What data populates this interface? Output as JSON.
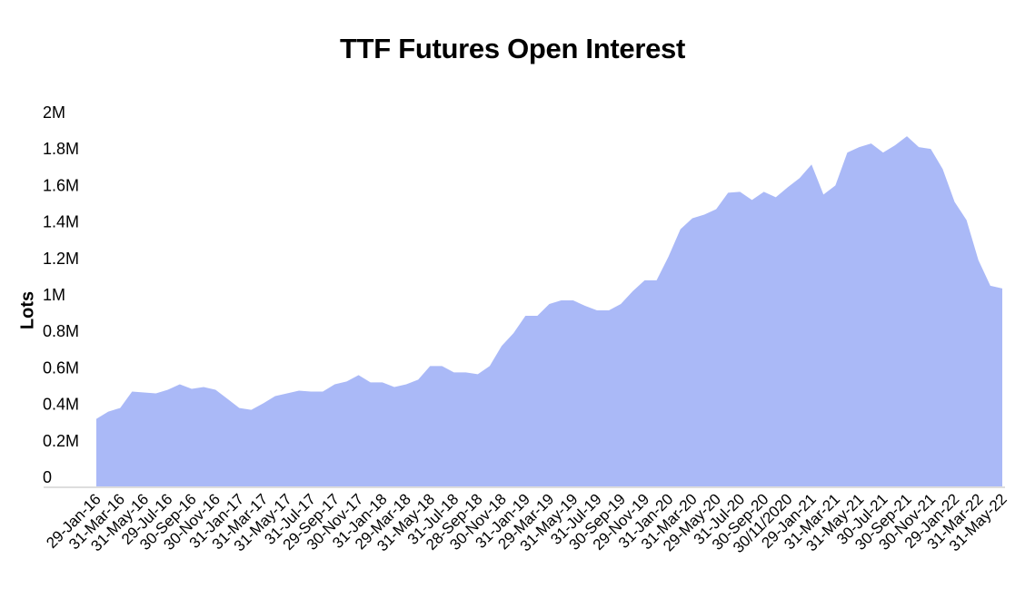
{
  "chart_data": {
    "type": "area",
    "title": "TTF Futures Open Interest",
    "xlabel": "",
    "ylabel": "Lots",
    "ylim": [
      0,
      2000000
    ],
    "yticks": [
      {
        "value": 0,
        "label": "0"
      },
      {
        "value": 200000,
        "label": "0.2M"
      },
      {
        "value": 400000,
        "label": "0.4M"
      },
      {
        "value": 600000,
        "label": "0.6M"
      },
      {
        "value": 800000,
        "label": "0.8M"
      },
      {
        "value": 1000000,
        "label": "1M"
      },
      {
        "value": 1200000,
        "label": "1.2M"
      },
      {
        "value": 1400000,
        "label": "1.4M"
      },
      {
        "value": 1600000,
        "label": "1.6M"
      },
      {
        "value": 1800000,
        "label": "1.8M"
      },
      {
        "value": 2000000,
        "label": "2M"
      }
    ],
    "xtick_labels": [
      "29-Jan-16",
      "31-Mar-16",
      "31-May-16",
      "29-Jul-16",
      "30-Sep-16",
      "30-Nov-16",
      "31-Jan-17",
      "31-Mar-17",
      "31-May-17",
      "31-Jul-17",
      "29-Sep-17",
      "30-Nov-17",
      "31-Jan-18",
      "29-Mar-18",
      "31-May-18",
      "31-Jul-18",
      "28-Sep-18",
      "30-Nov-18",
      "31-Jan-19",
      "29-Mar-19",
      "31-May-19",
      "31-Jul-19",
      "30-Sep-19",
      "29-Nov-19",
      "31-Jan-20",
      "31-Mar-20",
      "29-May-20",
      "31-Jul-20",
      "30-Sep-20",
      "30/11/2020",
      "29-Jan-21",
      "31-Mar-21",
      "31-May-21",
      "30-Jul-21",
      "30-Sep-21",
      "30-Nov-21",
      "29-Jan-22",
      "31-Mar-22",
      "31-May-22"
    ],
    "series": [
      {
        "color": "#aab9f7",
        "values": [
          370000,
          410000,
          430000,
          520000,
          515000,
          510000,
          530000,
          560000,
          535000,
          545000,
          530000,
          480000,
          430000,
          420000,
          455000,
          495000,
          510000,
          525000,
          520000,
          520000,
          560000,
          575000,
          610000,
          570000,
          570000,
          545000,
          560000,
          585000,
          660000,
          660000,
          625000,
          625000,
          615000,
          660000,
          770000,
          840000,
          935000,
          935000,
          1000000,
          1020000,
          1020000,
          990000,
          965000,
          965000,
          1000000,
          1070000,
          1130000,
          1130000,
          1260000,
          1410000,
          1470000,
          1490000,
          1520000,
          1610000,
          1615000,
          1570000,
          1615000,
          1585000,
          1640000,
          1690000,
          1765000,
          1600000,
          1650000,
          1830000,
          1860000,
          1880000,
          1830000,
          1870000,
          1920000,
          1860000,
          1850000,
          1740000,
          1560000,
          1460000,
          1240000,
          1100000,
          1085000
        ]
      }
    ]
  }
}
